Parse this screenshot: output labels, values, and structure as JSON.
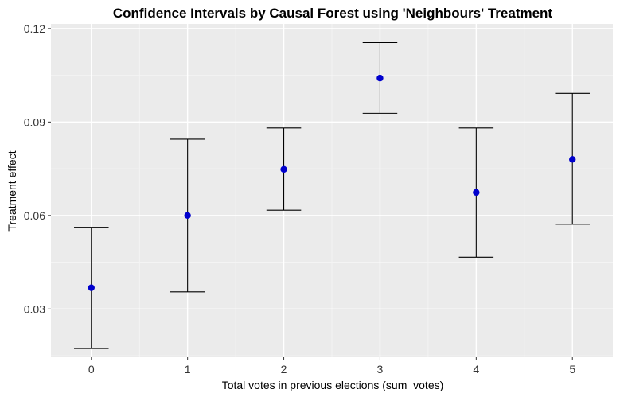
{
  "chart_data": {
    "type": "scatter",
    "title": "Confidence Intervals by Causal Forest using 'Neighbours' Treatment",
    "xlabel": "Total votes in previous elections (sum_votes)",
    "ylabel": "Treatment effect",
    "x": [
      0,
      1,
      2,
      3,
      4,
      5
    ],
    "x_ticks": [
      "0",
      "1",
      "2",
      "3",
      "4",
      "5"
    ],
    "y_ticks": [
      "0.03",
      "0.06",
      "0.09",
      "0.12"
    ],
    "y_tick_values": [
      0.03,
      0.06,
      0.09,
      0.12
    ],
    "xlim": [
      -0.42,
      5.42
    ],
    "ylim": [
      0.0145,
      0.1215
    ],
    "series": [
      {
        "estimate": [
          0.0368,
          0.06,
          0.0748,
          0.1041,
          0.0674,
          0.078
        ],
        "lower": [
          0.0173,
          0.0355,
          0.0617,
          0.0928,
          0.0466,
          0.0572
        ],
        "upper": [
          0.0562,
          0.0845,
          0.0881,
          0.1155,
          0.0881,
          0.0992
        ]
      }
    ],
    "grid": true,
    "legend": "none",
    "colors": {
      "panel": "#ebebeb",
      "grid_major": "#ffffff",
      "grid_minor": "#f5f5f5",
      "point": "#0000cd",
      "errorbar": "#000000"
    }
  }
}
